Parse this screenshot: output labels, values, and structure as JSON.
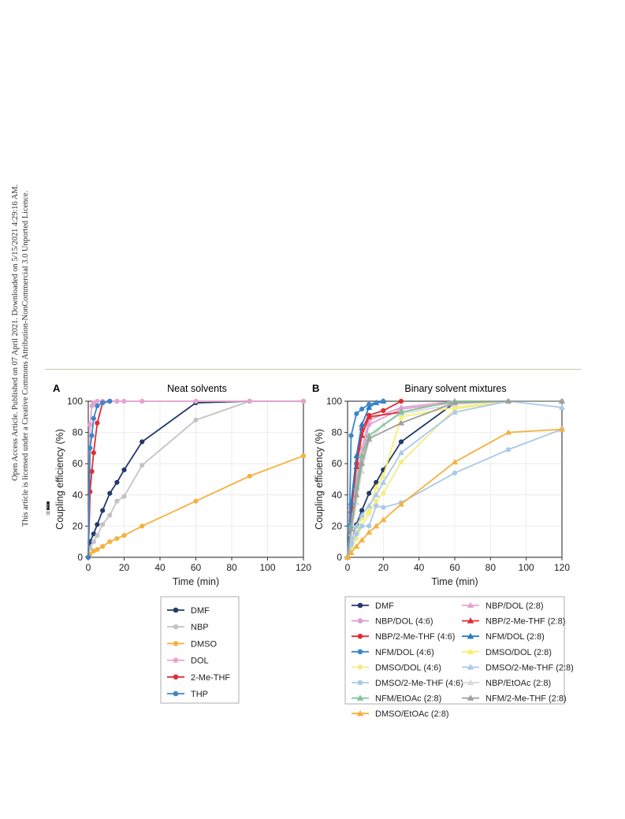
{
  "sidebar": {
    "line1": "Open Access Article. Published on 07 April 2021. Downloaded on 5/15/2021 4:29:16 AM.",
    "line2": "This article is licensed under a Creative Commons Attribution-NonCommercial 3.0 Unported Licence.",
    "badge_cc": "cc",
    "badge_text": "BY-NC"
  },
  "panels": [
    {
      "letter": "A",
      "title": "Neat solvents"
    },
    {
      "letter": "B",
      "title": "Binary solvent mixtures"
    }
  ],
  "chart_data": [
    {
      "type": "line",
      "title": "Neat solvents",
      "xlabel": "Time (min)",
      "ylabel": "Coupling efficiency (%)",
      "xlim": [
        0,
        120
      ],
      "ylim": [
        0,
        100
      ],
      "xticks": [
        0,
        20,
        40,
        60,
        80,
        100,
        120
      ],
      "yticks": [
        0,
        20,
        40,
        60,
        80,
        100
      ],
      "grid": true,
      "legend_position": "below",
      "series": [
        {
          "name": "DMF",
          "color": "#243a6b",
          "marker": "circle",
          "x": [
            0,
            1,
            3,
            5,
            8,
            12,
            16,
            20,
            30,
            60,
            90,
            120
          ],
          "y": [
            0,
            10,
            15,
            21,
            30,
            41,
            48,
            56,
            74,
            99,
            100,
            100
          ]
        },
        {
          "name": "NBP",
          "color": "#c3c3c3",
          "marker": "circle",
          "x": [
            0,
            1,
            3,
            5,
            8,
            12,
            16,
            20,
            30,
            60,
            90,
            120
          ],
          "y": [
            0,
            6,
            10,
            14,
            21,
            27,
            36,
            39,
            59,
            88,
            100,
            100
          ]
        },
        {
          "name": "DMSO",
          "color": "#f5b13d",
          "marker": "circle",
          "x": [
            0,
            1,
            3,
            5,
            8,
            12,
            16,
            20,
            30,
            60,
            90,
            120
          ],
          "y": [
            0,
            2,
            4,
            5,
            7,
            10,
            12,
            14,
            20,
            36,
            52,
            65
          ]
        },
        {
          "name": "DOL",
          "color": "#e6a3cf",
          "marker": "circle",
          "x": [
            0,
            1,
            2,
            3,
            5,
            8,
            12,
            16,
            20,
            30,
            60,
            90,
            120
          ],
          "y": [
            0,
            85,
            97,
            99,
            100,
            100,
            100,
            100,
            100,
            100,
            100,
            100,
            100
          ]
        },
        {
          "name": "2-Me-THF",
          "color": "#e02c36",
          "marker": "circle",
          "x": [
            0,
            1,
            2,
            3,
            5,
            8,
            12
          ],
          "y": [
            0,
            42,
            55,
            67,
            86,
            99,
            100
          ]
        },
        {
          "name": "THP",
          "color": "#3a87cc",
          "marker": "circle",
          "x": [
            0,
            1,
            2,
            3,
            5,
            8,
            12
          ],
          "y": [
            0,
            70,
            78,
            89,
            97,
            99,
            100
          ]
        }
      ]
    },
    {
      "type": "line",
      "title": "Binary solvent mixtures",
      "xlabel": "Time (min)",
      "ylabel": "Coupling efficiency (%)",
      "xlim": [
        0,
        120
      ],
      "ylim": [
        0,
        100
      ],
      "xticks": [
        0,
        20,
        40,
        60,
        80,
        100,
        120
      ],
      "yticks": [
        0,
        20,
        40,
        60,
        80,
        100
      ],
      "grid": true,
      "legend_position": "below",
      "series": [
        {
          "name": "DMF",
          "color": "#243a6b",
          "marker": "circle",
          "x": [
            0,
            2,
            5,
            8,
            12,
            16,
            20,
            30,
            60,
            90,
            120
          ],
          "y": [
            0,
            10,
            21,
            30,
            41,
            48,
            56,
            74,
            99,
            100,
            100
          ]
        },
        {
          "name": "NBP/DOL (2:8)",
          "color": "#e8a3cb",
          "marker": "triangle",
          "x": [
            0,
            2,
            5,
            8,
            12,
            30,
            60,
            90,
            120
          ],
          "y": [
            0,
            25,
            50,
            70,
            88,
            96,
            100,
            100,
            100
          ]
        },
        {
          "name": "NBP/DOL (4:6)",
          "color": "#d9a0d6",
          "marker": "circle",
          "x": [
            0,
            2,
            5,
            8,
            12,
            30,
            60,
            90,
            120
          ],
          "y": [
            0,
            20,
            45,
            65,
            85,
            95,
            99,
            100,
            100
          ]
        },
        {
          "name": "NBP/2-Me-THF (2:8)",
          "color": "#e02c36",
          "marker": "triangle",
          "x": [
            0,
            2,
            5,
            8,
            12,
            30
          ],
          "y": [
            0,
            30,
            58,
            78,
            90,
            93
          ]
        },
        {
          "name": "NBP/2-Me-THF (4:6)",
          "color": "#e02c36",
          "marker": "circle",
          "x": [
            0,
            2,
            5,
            8,
            12,
            20,
            30
          ],
          "y": [
            0,
            32,
            60,
            82,
            91,
            94,
            100
          ]
        },
        {
          "name": "NFM/DOL (2:8)",
          "color": "#2a79c7",
          "marker": "triangle",
          "x": [
            0,
            2,
            5,
            8,
            12,
            16,
            20
          ],
          "y": [
            0,
            35,
            65,
            85,
            96,
            99,
            100
          ]
        },
        {
          "name": "NFM/DOL (4:6)",
          "color": "#3a87cc",
          "marker": "circle",
          "x": [
            0,
            1,
            2,
            5,
            8,
            12,
            16,
            20
          ],
          "y": [
            0,
            20,
            78,
            92,
            95,
            98,
            99,
            100
          ]
        },
        {
          "name": "DMSO/DOL (2:8)",
          "color": "#f7f06a",
          "marker": "triangle",
          "x": [
            0,
            2,
            5,
            8,
            12,
            16,
            20,
            30,
            60,
            90,
            120
          ],
          "y": [
            0,
            8,
            16,
            25,
            30,
            45,
            52,
            90,
            96,
            100,
            100
          ]
        },
        {
          "name": "DMSO/DOL (4:6)",
          "color": "#f1ed8a",
          "marker": "circle",
          "x": [
            0,
            2,
            5,
            8,
            12,
            16,
            20,
            30,
            60,
            90,
            120
          ],
          "y": [
            0,
            6,
            12,
            20,
            28,
            36,
            41,
            61,
            95,
            100,
            100
          ]
        },
        {
          "name": "DMSO/2-Me-THF (2:8)",
          "color": "#a9c9ea",
          "marker": "triangle",
          "x": [
            0,
            2,
            5,
            8,
            12,
            16,
            20,
            30,
            60,
            90,
            120
          ],
          "y": [
            0,
            10,
            20,
            27,
            33,
            40,
            48,
            67,
            93,
            100,
            96
          ]
        },
        {
          "name": "DMSO/2-Me-THF (4:6)",
          "color": "#a9c9ea",
          "marker": "circle",
          "x": [
            0,
            2,
            5,
            8,
            12,
            16,
            20,
            30,
            60,
            90,
            120
          ],
          "y": [
            0,
            8,
            15,
            20,
            20,
            33,
            32,
            35,
            54,
            69,
            82
          ]
        },
        {
          "name": "NBP/EtOAc (2:8)",
          "color": "#dadada",
          "marker": "triangle",
          "x": [
            0,
            2,
            5,
            8,
            12,
            20,
            30,
            60,
            90,
            120
          ],
          "y": [
            0,
            15,
            35,
            55,
            75,
            85,
            92,
            98,
            100,
            100
          ]
        },
        {
          "name": "NFM/EtOAc (2:8)",
          "color": "#7bc49b",
          "marker": "triangle",
          "x": [
            0,
            2,
            5,
            8,
            12,
            30,
            60,
            90,
            120
          ],
          "y": [
            0,
            20,
            45,
            65,
            78,
            93,
            100,
            100,
            100
          ]
        },
        {
          "name": "NFM/2-Me-THF (2:8)",
          "color": "#9e9e9e",
          "marker": "triangle",
          "x": [
            0,
            2,
            5,
            8,
            12,
            30,
            60,
            90,
            120
          ],
          "y": [
            0,
            18,
            40,
            60,
            76,
            86,
            99,
            100,
            100
          ]
        },
        {
          "name": "DMSO/EtOAc (2:8)",
          "color": "#f5b13d",
          "marker": "triangle",
          "x": [
            0,
            2,
            5,
            8,
            12,
            16,
            20,
            30,
            60,
            90,
            120
          ],
          "y": [
            0,
            3,
            7,
            11,
            16,
            20,
            24,
            34,
            61,
            80,
            82
          ]
        }
      ]
    }
  ]
}
